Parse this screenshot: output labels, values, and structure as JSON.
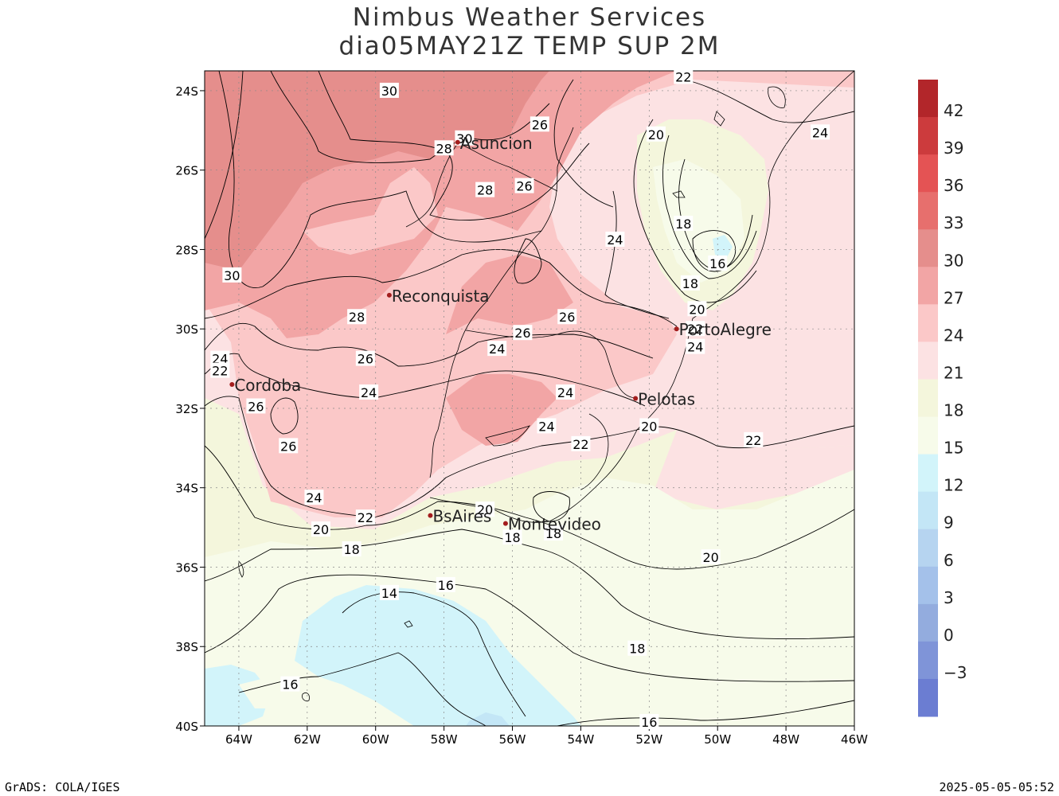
{
  "title_line1": "Nimbus Weather Services",
  "title_line2": "dia05MAY21Z TEMP SUP 2M",
  "lat_ticks": [
    "24S",
    "26S",
    "28S",
    "30S",
    "32S",
    "34S",
    "36S",
    "38S",
    "40S"
  ],
  "lon_ticks": [
    "64W",
    "62W",
    "60W",
    "58W",
    "56W",
    "54W",
    "52W",
    "50W",
    "48W",
    "46W"
  ],
  "cities": [
    {
      "name": "Asuncion",
      "lon": -57.6,
      "lat": -25.3
    },
    {
      "name": "Reconquista",
      "lon": -59.6,
      "lat": -29.15
    },
    {
      "name": "Cordoba",
      "lon": -64.2,
      "lat": -31.4
    },
    {
      "name": "PortoAlegre",
      "lon": -51.2,
      "lat": -30.0
    },
    {
      "name": "Pelotas",
      "lon": -52.4,
      "lat": -31.75
    },
    {
      "name": "BsAires",
      "lon": -58.4,
      "lat": -34.7
    },
    {
      "name": "Montevideo",
      "lon": -56.2,
      "lat": -34.9
    }
  ],
  "contour_labels": [
    {
      "text": "30",
      "lon": -59.6,
      "lat": -24.0
    },
    {
      "text": "30",
      "lon": -57.4,
      "lat": -25.2
    },
    {
      "text": "28",
      "lon": -58.0,
      "lat": -25.45
    },
    {
      "text": "26",
      "lon": -55.2,
      "lat": -24.85
    },
    {
      "text": "28",
      "lon": -56.8,
      "lat": -26.5
    },
    {
      "text": "26",
      "lon": -55.65,
      "lat": -26.4
    },
    {
      "text": "22",
      "lon": -51.0,
      "lat": -23.65
    },
    {
      "text": "20",
      "lon": -51.8,
      "lat": -25.1
    },
    {
      "text": "24",
      "lon": -47.0,
      "lat": -25.05
    },
    {
      "text": "24",
      "lon": -53.0,
      "lat": -27.75
    },
    {
      "text": "18",
      "lon": -51.0,
      "lat": -27.35
    },
    {
      "text": "16",
      "lon": -50.0,
      "lat": -28.35
    },
    {
      "text": "18",
      "lon": -50.8,
      "lat": -28.85
    },
    {
      "text": "20",
      "lon": -50.6,
      "lat": -29.5
    },
    {
      "text": "22",
      "lon": -50.65,
      "lat": -30.0
    },
    {
      "text": "24",
      "lon": -50.65,
      "lat": -30.45
    },
    {
      "text": "30",
      "lon": -64.2,
      "lat": -28.65
    },
    {
      "text": "28",
      "lon": -60.55,
      "lat": -29.7
    },
    {
      "text": "26",
      "lon": -54.4,
      "lat": -29.7
    },
    {
      "text": "26",
      "lon": -55.7,
      "lat": -30.1
    },
    {
      "text": "24",
      "lon": -56.45,
      "lat": -30.5
    },
    {
      "text": "26",
      "lon": -60.3,
      "lat": -30.75
    },
    {
      "text": "24",
      "lon": -64.55,
      "lat": -30.75
    },
    {
      "text": "22",
      "lon": -64.55,
      "lat": -31.05
    },
    {
      "text": "24",
      "lon": -60.2,
      "lat": -31.6
    },
    {
      "text": "24",
      "lon": -54.45,
      "lat": -31.6
    },
    {
      "text": "26",
      "lon": -63.5,
      "lat": -31.95
    },
    {
      "text": "24",
      "lon": -55.0,
      "lat": -32.45
    },
    {
      "text": "20",
      "lon": -52.0,
      "lat": -32.45
    },
    {
      "text": "22",
      "lon": -54.0,
      "lat": -32.9
    },
    {
      "text": "22",
      "lon": -48.95,
      "lat": -32.8
    },
    {
      "text": "26",
      "lon": -62.55,
      "lat": -32.95
    },
    {
      "text": "24",
      "lon": -61.8,
      "lat": -34.25
    },
    {
      "text": "22",
      "lon": -60.3,
      "lat": -34.75
    },
    {
      "text": "20",
      "lon": -56.8,
      "lat": -34.55
    },
    {
      "text": "20",
      "lon": -61.6,
      "lat": -35.05
    },
    {
      "text": "18",
      "lon": -60.7,
      "lat": -35.55
    },
    {
      "text": "18",
      "lon": -56.0,
      "lat": -35.25
    },
    {
      "text": "18",
      "lon": -54.8,
      "lat": -35.15
    },
    {
      "text": "20",
      "lon": -50.2,
      "lat": -35.75
    },
    {
      "text": "16",
      "lon": -57.95,
      "lat": -36.45
    },
    {
      "text": "14",
      "lon": -59.6,
      "lat": -36.65
    },
    {
      "text": "18",
      "lon": -52.35,
      "lat": -38.05
    },
    {
      "text": "16",
      "lon": -62.5,
      "lat": -38.95
    },
    {
      "text": "16",
      "lon": -52.0,
      "lat": -39.9
    }
  ],
  "colorbar": {
    "labels": [
      "42",
      "39",
      "36",
      "33",
      "30",
      "27",
      "24",
      "21",
      "18",
      "15",
      "12",
      "9",
      "6",
      "3",
      "0",
      "−3"
    ],
    "colors": [
      "#b2262a",
      "#cc3b3d",
      "#e45354",
      "#e76f6d",
      "#e58e8c",
      "#f2a5a5",
      "#fbc8c8",
      "#fce2e3",
      "#f4f6dc",
      "#f7fbea",
      "#d2f4fa",
      "#c3e6f6",
      "#b6d4f0",
      "#a4c1ea",
      "#93acde",
      "#7f94d8",
      "#6b7dd2"
    ]
  },
  "footer_left": "GrADS: COLA/IGES",
  "footer_right": "2025-05-05-05:52"
}
